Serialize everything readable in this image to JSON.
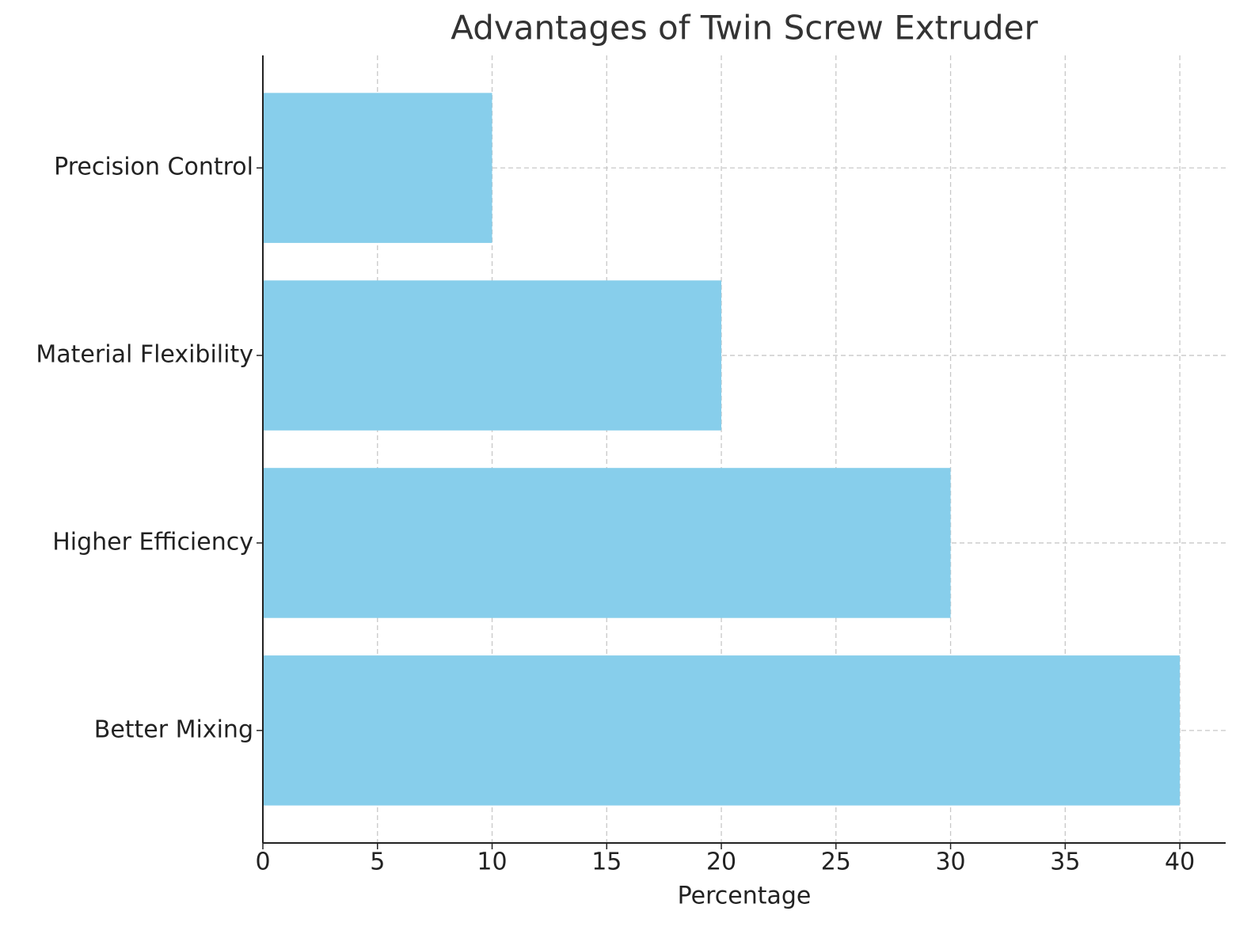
{
  "chart_data": {
    "type": "barh",
    "title": "Advantages of Twin Screw Extruder",
    "categories": [
      "Better Mixing",
      "Higher Efficiency",
      "Material Flexibility",
      "Precision Control"
    ],
    "values": [
      40,
      30,
      20,
      10
    ],
    "color": "#87ceeb",
    "xlabel": "Percentage",
    "xlim": [
      0,
      42
    ],
    "xticks": [
      0,
      5,
      10,
      15,
      20,
      25,
      30,
      35,
      40
    ],
    "grid": true
  }
}
